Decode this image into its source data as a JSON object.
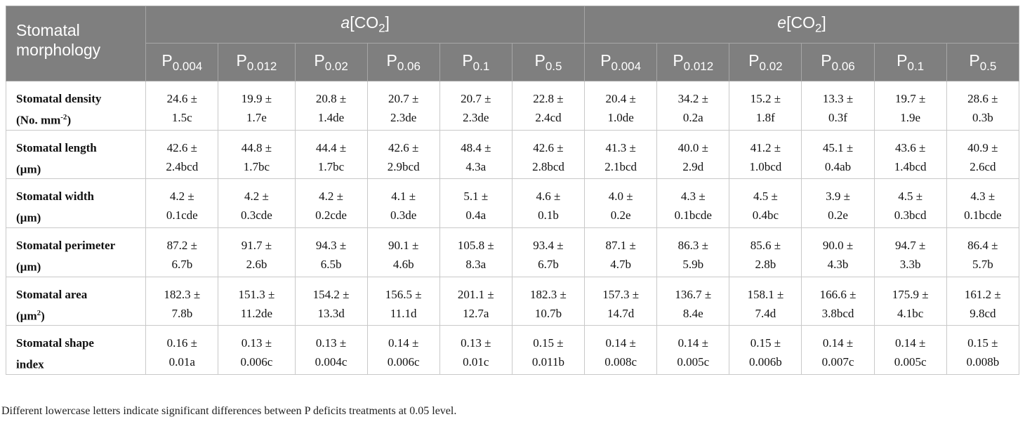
{
  "header": {
    "corner_label": "Stomatal morphology",
    "groups": [
      {
        "italic": "a",
        "rest": "[CO",
        "sub": "2",
        "close": "]"
      },
      {
        "italic": "e",
        "rest": "[CO",
        "sub": "2",
        "close": "]"
      }
    ],
    "columns": [
      {
        "p": "P",
        "sub": "0.004"
      },
      {
        "p": "P",
        "sub": "0.012"
      },
      {
        "p": "P",
        "sub": "0.02"
      },
      {
        "p": "P",
        "sub": "0.06"
      },
      {
        "p": "P",
        "sub": "0.1"
      },
      {
        "p": "P",
        "sub": "0.5"
      },
      {
        "p": "P",
        "sub": "0.004"
      },
      {
        "p": "P",
        "sub": "0.012"
      },
      {
        "p": "P",
        "sub": "0.02"
      },
      {
        "p": "P",
        "sub": "0.06"
      },
      {
        "p": "P",
        "sub": "0.1"
      },
      {
        "p": "P",
        "sub": "0.5"
      }
    ]
  },
  "rows": [
    {
      "label_line1": "Stomatal density",
      "label_line2": "(No. mm",
      "label_sup": "-2",
      "label_tail": ")",
      "cells": [
        [
          "24.6 ±",
          "1.5c"
        ],
        [
          "19.9 ±",
          "1.7e"
        ],
        [
          "20.8 ±",
          "1.4de"
        ],
        [
          "20.7 ±",
          "2.3de"
        ],
        [
          "20.7 ±",
          "2.3de"
        ],
        [
          "22.8 ±",
          "2.4cd"
        ],
        [
          "20.4 ±",
          "1.0de"
        ],
        [
          "34.2 ±",
          "0.2a"
        ],
        [
          "15.2 ±",
          "1.8f"
        ],
        [
          "13.3 ±",
          "0.3f"
        ],
        [
          "19.7 ±",
          "1.9e"
        ],
        [
          "28.6 ±",
          "0.3b"
        ]
      ]
    },
    {
      "label_line1": "Stomatal length",
      "label_line2": "(µm)",
      "label_sup": "",
      "label_tail": "",
      "cells": [
        [
          "42.6 ±",
          "2.4bcd"
        ],
        [
          "44.8 ±",
          "1.7bc"
        ],
        [
          "44.4 ±",
          "1.7bc"
        ],
        [
          "42.6 ±",
          "2.9bcd"
        ],
        [
          "48.4 ±",
          "4.3a"
        ],
        [
          "42.6 ±",
          "2.8bcd"
        ],
        [
          "41.3 ±",
          "2.1bcd"
        ],
        [
          "40.0 ±",
          "2.9d"
        ],
        [
          "41.2 ±",
          "1.0bcd"
        ],
        [
          "45.1 ±",
          "0.4ab"
        ],
        [
          "43.6 ±",
          "1.4bcd"
        ],
        [
          "40.9 ±",
          "2.6cd"
        ]
      ]
    },
    {
      "label_line1": "Stomatal width",
      "label_line2": "(µm)",
      "label_sup": "",
      "label_tail": "",
      "cells": [
        [
          "4.2 ±",
          "0.1cde"
        ],
        [
          "4.2 ±",
          "0.3cde"
        ],
        [
          "4.2 ±",
          "0.2cde"
        ],
        [
          "4.1 ±",
          "0.3de"
        ],
        [
          "5.1 ±",
          "0.4a"
        ],
        [
          "4.6 ±",
          "0.1b"
        ],
        [
          "4.0 ±",
          "0.2e"
        ],
        [
          "4.3 ±",
          "0.1bcde"
        ],
        [
          "4.5 ±",
          "0.4bc"
        ],
        [
          "3.9 ±",
          "0.2e"
        ],
        [
          "4.5 ±",
          "0.3bcd"
        ],
        [
          "4.3 ±",
          "0.1bcde"
        ]
      ]
    },
    {
      "label_line1": "Stomatal perimeter",
      "label_line2": "(µm)",
      "label_sup": "",
      "label_tail": "",
      "cells": [
        [
          "87.2 ±",
          "6.7b"
        ],
        [
          "91.7 ±",
          "2.6b"
        ],
        [
          "94.3 ±",
          "6.5b"
        ],
        [
          "90.1 ±",
          "4.6b"
        ],
        [
          "105.8 ±",
          "8.3a"
        ],
        [
          "93.4 ±",
          "6.7b"
        ],
        [
          "87.1 ±",
          "4.7b"
        ],
        [
          "86.3 ±",
          "5.9b"
        ],
        [
          "85.6 ±",
          "2.8b"
        ],
        [
          "90.0 ±",
          "4.3b"
        ],
        [
          "94.7 ±",
          "3.3b"
        ],
        [
          "86.4 ±",
          "5.7b"
        ]
      ]
    },
    {
      "label_line1": "Stomatal area",
      "label_line2": "(µm",
      "label_sup": "2",
      "label_tail": ")",
      "cells": [
        [
          "182.3 ±",
          "7.8b"
        ],
        [
          "151.3 ±",
          "11.2de"
        ],
        [
          "154.2 ±",
          "13.3d"
        ],
        [
          "156.5 ±",
          "11.1d"
        ],
        [
          "201.1 ±",
          "12.7a"
        ],
        [
          "182.3 ±",
          "10.7b"
        ],
        [
          "157.3 ±",
          "14.7d"
        ],
        [
          "136.7 ±",
          "8.4e"
        ],
        [
          "158.1 ±",
          "7.4d"
        ],
        [
          "166.6 ±",
          "3.8bcd"
        ],
        [
          "175.9 ±",
          "4.1bc"
        ],
        [
          "161.2 ±",
          "9.8cd"
        ]
      ]
    },
    {
      "label_line1": "Stomatal shape",
      "label_line2": "index",
      "label_sup": "",
      "label_tail": "",
      "cells": [
        [
          "0.16 ±",
          "0.01a"
        ],
        [
          "0.13 ±",
          "0.006c"
        ],
        [
          "0.13 ±",
          "0.004c"
        ],
        [
          "0.14 ±",
          "0.006c"
        ],
        [
          "0.13 ±",
          "0.01c"
        ],
        [
          "0.15 ±",
          "0.011b"
        ],
        [
          "0.14 ±",
          "0.008c"
        ],
        [
          "0.14 ±",
          "0.005c"
        ],
        [
          "0.15 ±",
          "0.006b"
        ],
        [
          "0.14 ±",
          "0.007c"
        ],
        [
          "0.14 ±",
          "0.005c"
        ],
        [
          "0.15 ±",
          "0.008b"
        ]
      ]
    }
  ],
  "footnote": "Different lowercase letters indicate significant differences between P deficits treatments at 0.05 level."
}
